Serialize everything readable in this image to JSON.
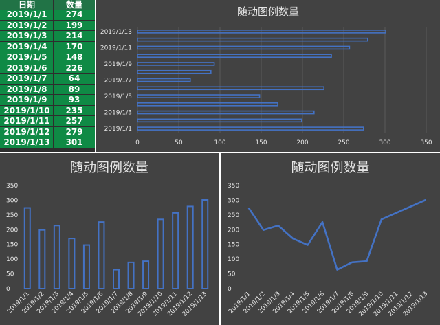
{
  "table": {
    "headers": [
      "日期",
      "数量"
    ],
    "rows": [
      [
        "2019/1/1",
        "274"
      ],
      [
        "2019/1/2",
        "199"
      ],
      [
        "2019/1/3",
        "214"
      ],
      [
        "2019/1/4",
        "170"
      ],
      [
        "2019/1/5",
        "148"
      ],
      [
        "2019/1/6",
        "226"
      ],
      [
        "2019/1/7",
        "64"
      ],
      [
        "2019/1/8",
        "89"
      ],
      [
        "2019/1/9",
        "93"
      ],
      [
        "2019/1/10",
        "235"
      ],
      [
        "2019/1/11",
        "257"
      ],
      [
        "2019/1/12",
        "279"
      ],
      [
        "2019/1/13",
        "301"
      ]
    ]
  },
  "chart_data": [
    {
      "type": "bar",
      "orientation": "horizontal",
      "title": "随动图例数量",
      "categories": [
        "2019/1/1",
        "2019/1/2",
        "2019/1/3",
        "2019/1/4",
        "2019/1/5",
        "2019/1/6",
        "2019/1/7",
        "2019/1/8",
        "2019/1/9",
        "2019/1/10",
        "2019/1/11",
        "2019/1/12",
        "2019/1/13"
      ],
      "values": [
        274,
        199,
        214,
        170,
        148,
        226,
        64,
        89,
        93,
        235,
        257,
        279,
        301
      ],
      "category_tick_labels": [
        "2019/1/1",
        "2019/1/3",
        "2019/1/5",
        "2019/1/7",
        "2019/1/9",
        "2019/1/11",
        "2019/1/13"
      ],
      "xlim": [
        0,
        350
      ],
      "xticks": [
        "0",
        "50",
        "100",
        "150",
        "200",
        "250",
        "300",
        "350"
      ],
      "grid": true
    },
    {
      "type": "bar",
      "orientation": "vertical",
      "title": "随动图例数量",
      "categories": [
        "2019/1/1",
        "2019/1/2",
        "2019/1/3",
        "2019/1/4",
        "2019/1/5",
        "2019/1/6",
        "2019/1/7",
        "2019/1/8",
        "2019/1/9",
        "2019/1/10",
        "2019/1/11",
        "2019/1/12",
        "2019/1/13"
      ],
      "values": [
        274,
        199,
        214,
        170,
        148,
        226,
        64,
        89,
        93,
        235,
        257,
        279,
        301
      ],
      "ylim": [
        0,
        350
      ],
      "yticks": [
        "0",
        "50",
        "100",
        "150",
        "200",
        "250",
        "300",
        "350"
      ],
      "grid": false
    },
    {
      "type": "line",
      "title": "随动图例数量",
      "categories": [
        "2019/1/1",
        "2019/1/2",
        "2019/1/3",
        "2019/1/4",
        "2019/1/5",
        "2019/1/6",
        "2019/1/7",
        "2019/1/8",
        "2019/1/9",
        "2019/1/10",
        "2019/1/11",
        "2019/1/12",
        "2019/1/13"
      ],
      "values": [
        274,
        199,
        214,
        170,
        148,
        226,
        64,
        89,
        93,
        235,
        257,
        279,
        301
      ],
      "ylim": [
        0,
        350
      ],
      "yticks": [
        "0",
        "50",
        "100",
        "150",
        "200",
        "250",
        "300",
        "350"
      ],
      "grid": false
    }
  ],
  "colors": {
    "series": "#4472c4",
    "panel_bg": "#424242",
    "table_row": "#0f8a45",
    "table_header": "#217346",
    "text": "#e6e6e6"
  }
}
